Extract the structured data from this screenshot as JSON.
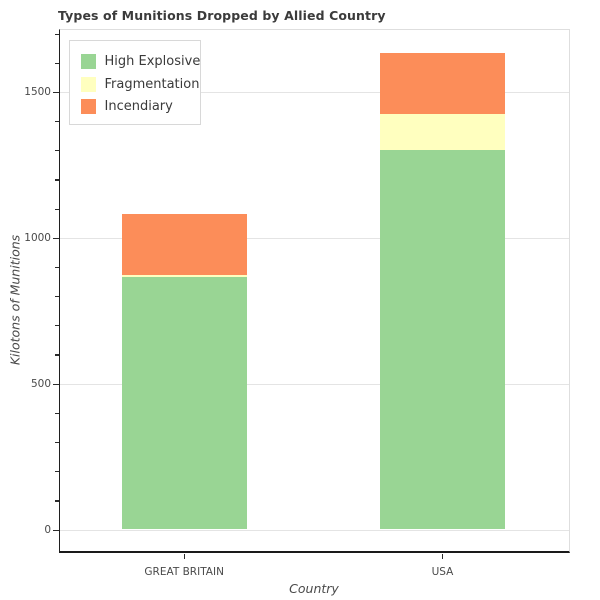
{
  "title": "Types of Munitions Dropped by Allied Country",
  "chart_data": {
    "type": "bar",
    "stacked": true,
    "title": "Types of Munitions Dropped by Allied Country",
    "xlabel": "Country",
    "ylabel": "Kilotons of Munitions",
    "categories": [
      "GREAT BRITAIN",
      "USA"
    ],
    "series": [
      {
        "name": "High Explosive",
        "color": "#99d594",
        "values": [
          866,
          1300
        ]
      },
      {
        "name": "Fragmentation",
        "color": "#ffffbf",
        "values": [
          7,
          124
        ]
      },
      {
        "name": "Incendiary",
        "color": "#fc8d59",
        "values": [
          207,
          211
        ]
      }
    ],
    "totals": [
      1080,
      1635
    ],
    "yticks": [
      0,
      500,
      1000,
      1500
    ],
    "ytick_minor_step": 100,
    "ylim": [
      -80,
      1722
    ],
    "grid": "horizontal",
    "legend_position": "upper left"
  }
}
